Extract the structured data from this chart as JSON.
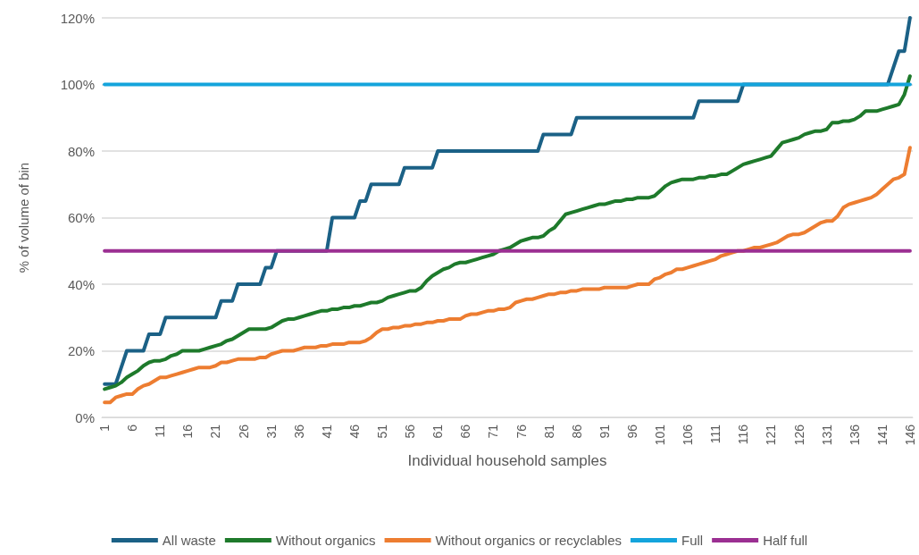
{
  "chart_data": {
    "type": "line",
    "xlabel": "Individual household samples",
    "ylabel": "% of volume of bin",
    "categories": [
      "1",
      null,
      null,
      null,
      null,
      "6",
      null,
      null,
      null,
      null,
      "11",
      null,
      null,
      null,
      null,
      "16",
      null,
      null,
      null,
      null,
      "21",
      null,
      null,
      null,
      null,
      "26",
      null,
      null,
      null,
      null,
      "31",
      null,
      null,
      null,
      null,
      "36",
      null,
      null,
      null,
      null,
      "41",
      null,
      null,
      null,
      null,
      "46",
      null,
      null,
      null,
      null,
      "51",
      null,
      null,
      null,
      null,
      "56",
      null,
      null,
      null,
      null,
      "61",
      null,
      null,
      null,
      null,
      "66",
      null,
      null,
      null,
      null,
      "71",
      null,
      null,
      null,
      null,
      "76",
      null,
      null,
      null,
      null,
      "81",
      null,
      null,
      null,
      null,
      "86",
      null,
      null,
      null,
      null,
      "91",
      null,
      null,
      null,
      null,
      "96",
      null,
      null,
      null,
      null,
      "101",
      null,
      null,
      null,
      null,
      "106",
      null,
      null,
      null,
      null,
      "111",
      null,
      null,
      null,
      null,
      "116",
      null,
      null,
      null,
      null,
      "121",
      null,
      null,
      null,
      null,
      "126",
      null,
      null,
      null,
      null,
      "131",
      null,
      null,
      null,
      null,
      "136",
      null,
      null,
      null,
      null,
      "141",
      null,
      null,
      null,
      null,
      "146"
    ],
    "series": [
      {
        "name": "All waste",
        "color": "#1b6186",
        "values": [
          10,
          10,
          10,
          15,
          20,
          20,
          20,
          20,
          25,
          25,
          25,
          30,
          30,
          30,
          30,
          30,
          30,
          30,
          30,
          30,
          30,
          35,
          35,
          35,
          40,
          40,
          40,
          40,
          40,
          45,
          45,
          50,
          50,
          50,
          50,
          50,
          50,
          50,
          50,
          50,
          50,
          60,
          60,
          60,
          60,
          60,
          65,
          65,
          70,
          70,
          70,
          70,
          70,
          70,
          75,
          75,
          75,
          75,
          75,
          75,
          80,
          80,
          80,
          80,
          80,
          80,
          80,
          80,
          80,
          80,
          80,
          80,
          80,
          80,
          80,
          80,
          80,
          80,
          80,
          85,
          85,
          85,
          85,
          85,
          85,
          90,
          90,
          90,
          90,
          90,
          90,
          90,
          90,
          90,
          90,
          90,
          90,
          90,
          90,
          90,
          90,
          90,
          90,
          90,
          90,
          90,
          90,
          95,
          95,
          95,
          95,
          95,
          95,
          95,
          95,
          100,
          100,
          100,
          100,
          100,
          100,
          100,
          100,
          100,
          100,
          100,
          100,
          100,
          100,
          100,
          100,
          100,
          100,
          100,
          100,
          100,
          100,
          100,
          100,
          100,
          100,
          100,
          105,
          110,
          110,
          120
        ]
      },
      {
        "name": "Without organics",
        "color": "#1e7a2b",
        "values": [
          8.5,
          9,
          9.5,
          10.5,
          12,
          13,
          14,
          15.5,
          16.5,
          17,
          17,
          17.5,
          18.5,
          19,
          20,
          20,
          20,
          20,
          20.5,
          21,
          21.5,
          22,
          23,
          23.5,
          24.5,
          25.5,
          26.5,
          26.5,
          26.5,
          26.5,
          27,
          28,
          29,
          29.5,
          29.5,
          30,
          30.5,
          31,
          31.5,
          32,
          32,
          32.5,
          32.5,
          33,
          33,
          33.5,
          33.5,
          34,
          34.5,
          34.5,
          35,
          36,
          36.5,
          37,
          37.5,
          38,
          38,
          39,
          41,
          42.5,
          43.5,
          44.5,
          45,
          46,
          46.5,
          46.5,
          47,
          47.5,
          48,
          48.5,
          49,
          50,
          50.5,
          51,
          52,
          53,
          53.5,
          54,
          54,
          54.5,
          56,
          57,
          59,
          61,
          61.5,
          62,
          62.5,
          63,
          63.5,
          64,
          64,
          64.5,
          65,
          65,
          65.5,
          65.5,
          66,
          66,
          66,
          66.5,
          68,
          69.5,
          70.5,
          71,
          71.5,
          71.5,
          71.5,
          72,
          72,
          72.5,
          72.5,
          73,
          73,
          74,
          75,
          76,
          76.5,
          77,
          77.5,
          78,
          78.5,
          80.5,
          82.5,
          83,
          83.5,
          84,
          85,
          85.5,
          86,
          86,
          86.5,
          88.5,
          88.5,
          89,
          89,
          89.5,
          90.5,
          92,
          92,
          92,
          92.5,
          93,
          93.5,
          94,
          97,
          102.5
        ]
      },
      {
        "name": "Without organics or recyclables",
        "color": "#ed7d31",
        "values": [
          4.5,
          4.5,
          6,
          6.5,
          7,
          7,
          8.5,
          9.5,
          10,
          11,
          12,
          12,
          12.5,
          13,
          13.5,
          14,
          14.5,
          15,
          15,
          15,
          15.5,
          16.5,
          16.5,
          17,
          17.5,
          17.5,
          17.5,
          17.5,
          18,
          18,
          19,
          19.5,
          20,
          20,
          20,
          20.5,
          21,
          21,
          21,
          21.5,
          21.5,
          22,
          22,
          22,
          22.5,
          22.5,
          22.5,
          23,
          24,
          25.5,
          26.5,
          26.5,
          27,
          27,
          27.5,
          27.5,
          28,
          28,
          28.5,
          28.5,
          29,
          29,
          29.5,
          29.5,
          29.5,
          30.5,
          31,
          31,
          31.5,
          32,
          32,
          32.5,
          32.5,
          33,
          34.5,
          35,
          35.5,
          35.5,
          36,
          36.5,
          37,
          37,
          37.5,
          37.5,
          38,
          38,
          38.5,
          38.5,
          38.5,
          38.5,
          39,
          39,
          39,
          39,
          39,
          39.5,
          40,
          40,
          40,
          41.5,
          42,
          43,
          43.5,
          44.5,
          44.5,
          45,
          45.5,
          46,
          46.5,
          47,
          47.5,
          48.5,
          49,
          49.5,
          50,
          50,
          50.5,
          51,
          51,
          51.5,
          52,
          52.5,
          53.5,
          54.5,
          55,
          55,
          55.5,
          56.5,
          57.5,
          58.5,
          59,
          59,
          60.5,
          63,
          64,
          64.5,
          65,
          65.5,
          66,
          67,
          68.5,
          70,
          71.5,
          72,
          73,
          81
        ]
      },
      {
        "name": "Full",
        "color": "#14a4dc",
        "values": [
          100,
          100,
          100,
          100,
          100,
          100,
          100,
          100,
          100,
          100,
          100,
          100,
          100,
          100,
          100,
          100,
          100,
          100,
          100,
          100,
          100,
          100,
          100,
          100,
          100,
          100,
          100,
          100,
          100,
          100,
          100,
          100,
          100,
          100,
          100,
          100,
          100,
          100,
          100,
          100,
          100,
          100,
          100,
          100,
          100,
          100,
          100,
          100,
          100,
          100,
          100,
          100,
          100,
          100,
          100,
          100,
          100,
          100,
          100,
          100,
          100,
          100,
          100,
          100,
          100,
          100,
          100,
          100,
          100,
          100,
          100,
          100,
          100,
          100,
          100,
          100,
          100,
          100,
          100,
          100,
          100,
          100,
          100,
          100,
          100,
          100,
          100,
          100,
          100,
          100,
          100,
          100,
          100,
          100,
          100,
          100,
          100,
          100,
          100,
          100,
          100,
          100,
          100,
          100,
          100,
          100,
          100,
          100,
          100,
          100,
          100,
          100,
          100,
          100,
          100,
          100,
          100,
          100,
          100,
          100,
          100,
          100,
          100,
          100,
          100,
          100,
          100,
          100,
          100,
          100,
          100,
          100,
          100,
          100,
          100,
          100,
          100,
          100,
          100,
          100,
          100,
          100,
          100,
          100,
          100,
          100
        ]
      },
      {
        "name": "Half full",
        "color": "#9b2f92",
        "values": [
          50,
          50,
          50,
          50,
          50,
          50,
          50,
          50,
          50,
          50,
          50,
          50,
          50,
          50,
          50,
          50,
          50,
          50,
          50,
          50,
          50,
          50,
          50,
          50,
          50,
          50,
          50,
          50,
          50,
          50,
          50,
          50,
          50,
          50,
          50,
          50,
          50,
          50,
          50,
          50,
          50,
          50,
          50,
          50,
          50,
          50,
          50,
          50,
          50,
          50,
          50,
          50,
          50,
          50,
          50,
          50,
          50,
          50,
          50,
          50,
          50,
          50,
          50,
          50,
          50,
          50,
          50,
          50,
          50,
          50,
          50,
          50,
          50,
          50,
          50,
          50,
          50,
          50,
          50,
          50,
          50,
          50,
          50,
          50,
          50,
          50,
          50,
          50,
          50,
          50,
          50,
          50,
          50,
          50,
          50,
          50,
          50,
          50,
          50,
          50,
          50,
          50,
          50,
          50,
          50,
          50,
          50,
          50,
          50,
          50,
          50,
          50,
          50,
          50,
          50,
          50,
          50,
          50,
          50,
          50,
          50,
          50,
          50,
          50,
          50,
          50,
          50,
          50,
          50,
          50,
          50,
          50,
          50,
          50,
          50,
          50,
          50,
          50,
          50,
          50,
          50,
          50,
          50,
          50,
          50,
          50
        ]
      }
    ],
    "ylim": [
      0,
      120
    ],
    "yticks": [
      {
        "value": 0,
        "label": "0%"
      },
      {
        "value": 20,
        "label": "20%"
      },
      {
        "value": 40,
        "label": "40%"
      },
      {
        "value": 60,
        "label": "60%"
      },
      {
        "value": 80,
        "label": "80%"
      },
      {
        "value": 100,
        "label": "100%"
      },
      {
        "value": 120,
        "label": "120%"
      }
    ],
    "grid": "y",
    "legend": "bottom",
    "marker": "none",
    "line_style": "solid"
  }
}
